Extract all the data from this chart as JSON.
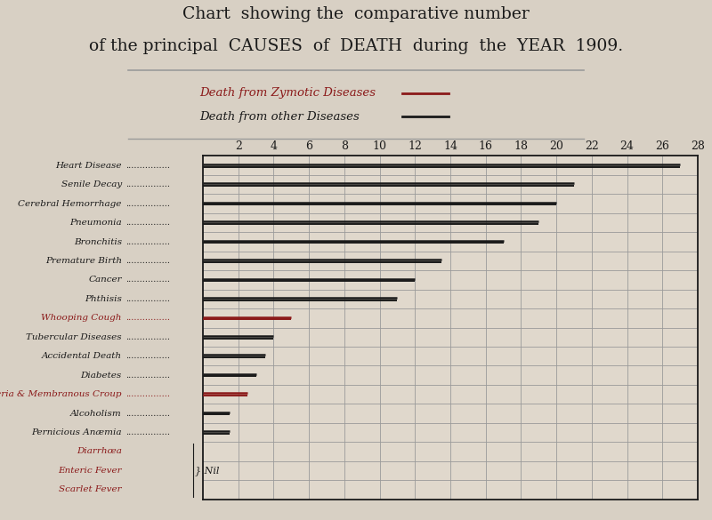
{
  "title_line1": "Chart  showing the  comparative number",
  "title_line2": "of the principal  CAUSES  of  DEATH  during  the  YEAR  1909.",
  "legend_zymotic": "Death from Zymotic Diseases",
  "legend_other": "Death from other Diseases",
  "categories": [
    "Heart Disease",
    "Senile Decay",
    "Cerebral Hemorrhage",
    "Pneumonia",
    "Bronchitis",
    "Premature Birth",
    "Cancer",
    "Phthisis",
    "Whooping Cough",
    "Tubercular Diseases",
    "Accidental Death",
    "Diabetes",
    "Diptheria & Membranous Croup",
    "Alcoholism",
    "Pernicious Anæmia",
    "Diarrhœa",
    "Enteric Fever",
    "Scarlet Fever"
  ],
  "values": [
    27.0,
    21.0,
    20.0,
    19.0,
    17.0,
    13.5,
    12.0,
    11.0,
    5.0,
    4.0,
    3.5,
    3.0,
    2.5,
    1.5,
    1.5,
    0,
    0,
    0
  ],
  "is_zymotic": [
    false,
    false,
    false,
    false,
    false,
    false,
    false,
    false,
    true,
    false,
    false,
    false,
    true,
    false,
    false,
    true,
    true,
    true
  ],
  "nil_group": [
    false,
    false,
    false,
    false,
    false,
    false,
    false,
    false,
    false,
    false,
    false,
    false,
    false,
    false,
    false,
    true,
    true,
    true
  ],
  "color_black": "#1a1a1a",
  "color_red": "#8b1a1a",
  "color_grid": "#9a9a9a",
  "color_bg": "#d8d0c4",
  "color_paper": "#e0d8cc",
  "xlim": [
    0,
    28
  ],
  "xticks": [
    2,
    4,
    6,
    8,
    10,
    12,
    14,
    16,
    18,
    20,
    22,
    24,
    26,
    28
  ]
}
